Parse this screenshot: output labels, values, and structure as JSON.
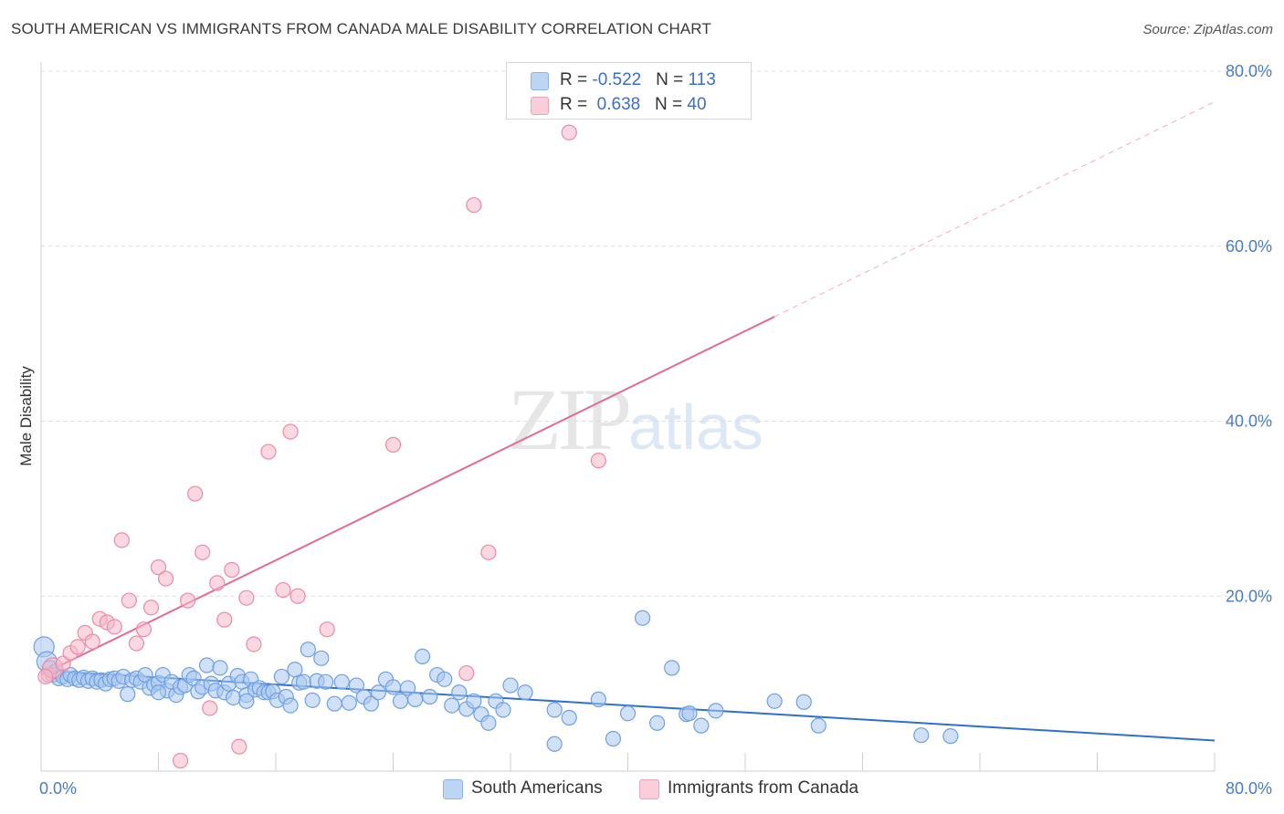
{
  "title": "SOUTH AMERICAN VS IMMIGRANTS FROM CANADA MALE DISABILITY CORRELATION CHART",
  "source": "Source: ZipAtlas.com",
  "watermark": {
    "zip": "ZIP",
    "atlas": "atlas"
  },
  "legend": {
    "series1": {
      "r_label": "R = ",
      "r_value": "-0.522",
      "n_label": "N = ",
      "n_value": "113",
      "color": "#a9c8f0"
    },
    "series2": {
      "r_label": "R = ",
      "r_value": "0.638",
      "n_label": "N = ",
      "n_value": "40",
      "color": "#f6b8c9"
    }
  },
  "bottom_legend": [
    {
      "label": "South Americans",
      "color": "#a9c8f0"
    },
    {
      "label": "Immigrants from Canada",
      "color": "#f6b8c9"
    }
  ],
  "chart_data": {
    "type": "scatter",
    "title": "SOUTH AMERICAN VS IMMIGRANTS FROM CANADA MALE DISABILITY CORRELATION CHART",
    "xlabel": "",
    "ylabel": "Male Disability",
    "xlim": [
      0,
      80
    ],
    "ylim": [
      0,
      80
    ],
    "x_tick_labels": [
      "0.0%",
      "80.0%"
    ],
    "y_tick_labels": [
      "20.0%",
      "40.0%",
      "60.0%",
      "80.0%"
    ],
    "y_ticks": [
      20,
      40,
      60,
      80
    ],
    "grid": true,
    "legend_position": "top-center",
    "series": [
      {
        "name": "South Americans",
        "color": "#6fa0e3",
        "fill": "#a9c8f0",
        "trend": {
          "x0": 0,
          "y0": 11.5,
          "x1": 80,
          "y1": 3.5,
          "solid_until": 80
        },
        "points": [
          [
            0.2,
            14.2
          ],
          [
            0.4,
            12.5
          ],
          [
            0.6,
            11.8
          ],
          [
            0.8,
            11.0
          ],
          [
            1.0,
            11.4
          ],
          [
            1.2,
            10.6
          ],
          [
            1.5,
            10.8
          ],
          [
            1.8,
            10.5
          ],
          [
            2.0,
            11.0
          ],
          [
            2.3,
            10.6
          ],
          [
            2.6,
            10.4
          ],
          [
            2.9,
            10.7
          ],
          [
            3.2,
            10.3
          ],
          [
            3.5,
            10.6
          ],
          [
            3.8,
            10.2
          ],
          [
            4.1,
            10.4
          ],
          [
            4.4,
            10.0
          ],
          [
            4.7,
            10.5
          ],
          [
            5.0,
            10.6
          ],
          [
            5.3,
            10.3
          ],
          [
            5.6,
            10.8
          ],
          [
            5.9,
            8.8
          ],
          [
            6.2,
            10.4
          ],
          [
            6.5,
            10.6
          ],
          [
            6.8,
            10.2
          ],
          [
            7.1,
            11.0
          ],
          [
            7.4,
            9.5
          ],
          [
            7.7,
            9.9
          ],
          [
            8.0,
            10.1
          ],
          [
            8.3,
            11.0
          ],
          [
            8.6,
            9.2
          ],
          [
            8.9,
            10.2
          ],
          [
            9.2,
            8.7
          ],
          [
            9.5,
            9.6
          ],
          [
            9.8,
            9.8
          ],
          [
            10.1,
            11.0
          ],
          [
            10.4,
            10.6
          ],
          [
            10.7,
            9.1
          ],
          [
            11.0,
            9.6
          ],
          [
            11.3,
            12.1
          ],
          [
            11.6,
            10.0
          ],
          [
            11.9,
            9.2
          ],
          [
            12.2,
            11.8
          ],
          [
            12.5,
            9.0
          ],
          [
            12.8,
            10.0
          ],
          [
            13.1,
            8.4
          ],
          [
            13.4,
            10.9
          ],
          [
            13.7,
            10.2
          ],
          [
            14.0,
            8.7
          ],
          [
            14.3,
            10.5
          ],
          [
            14.6,
            9.3
          ],
          [
            14.9,
            9.5
          ],
          [
            15.2,
            9.0
          ],
          [
            15.5,
            9.0
          ],
          [
            15.8,
            9.1
          ],
          [
            16.1,
            8.1
          ],
          [
            16.4,
            10.8
          ],
          [
            16.7,
            8.5
          ],
          [
            17.0,
            7.5
          ],
          [
            17.3,
            11.6
          ],
          [
            17.6,
            10.1
          ],
          [
            17.9,
            10.2
          ],
          [
            18.2,
            13.9
          ],
          [
            18.5,
            8.1
          ],
          [
            18.8,
            10.3
          ],
          [
            19.1,
            12.9
          ],
          [
            19.4,
            10.2
          ],
          [
            20.0,
            7.7
          ],
          [
            20.5,
            10.2
          ],
          [
            21.0,
            7.8
          ],
          [
            21.5,
            9.8
          ],
          [
            22.0,
            8.5
          ],
          [
            22.5,
            7.7
          ],
          [
            23.0,
            9.0
          ],
          [
            23.5,
            10.5
          ],
          [
            24.0,
            9.6
          ],
          [
            24.5,
            8.0
          ],
          [
            25.0,
            9.5
          ],
          [
            25.5,
            8.2
          ],
          [
            26.0,
            13.1
          ],
          [
            26.5,
            8.5
          ],
          [
            27.0,
            11.0
          ],
          [
            27.5,
            10.5
          ],
          [
            28.0,
            7.5
          ],
          [
            28.5,
            9.0
          ],
          [
            29.0,
            7.1
          ],
          [
            29.5,
            8.0
          ],
          [
            30.0,
            6.5
          ],
          [
            30.5,
            5.5
          ],
          [
            31.0,
            8.0
          ],
          [
            31.5,
            7.0
          ],
          [
            32.0,
            9.8
          ],
          [
            33.0,
            9.0
          ],
          [
            35.0,
            7.0
          ],
          [
            36.0,
            6.1
          ],
          [
            38.0,
            8.2
          ],
          [
            39.0,
            3.7
          ],
          [
            40.0,
            6.6
          ],
          [
            41.0,
            17.5
          ],
          [
            42.0,
            5.5
          ],
          [
            43.0,
            11.8
          ],
          [
            44.0,
            6.5
          ],
          [
            44.2,
            6.6
          ],
          [
            45.0,
            5.2
          ],
          [
            46.0,
            6.9
          ],
          [
            50.0,
            8.0
          ],
          [
            52.0,
            7.9
          ],
          [
            53.0,
            5.2
          ],
          [
            60.0,
            4.1
          ],
          [
            62.0,
            4.0
          ],
          [
            8.0,
            9.0
          ],
          [
            14.0,
            8.0
          ],
          [
            35.0,
            3.1
          ]
        ]
      },
      {
        "name": "Immigrants from Canada",
        "color": "#ee8aa8",
        "fill": "#f6b8c9",
        "trend": {
          "x0": 0,
          "y0": 11.0,
          "x1": 80,
          "y1": 76.5,
          "solid_until": 50
        },
        "points": [
          [
            0.5,
            11.0
          ],
          [
            0.8,
            11.8
          ],
          [
            1.5,
            12.3
          ],
          [
            2.0,
            13.5
          ],
          [
            2.5,
            14.2
          ],
          [
            3.0,
            15.8
          ],
          [
            3.5,
            14.8
          ],
          [
            4.0,
            17.4
          ],
          [
            4.5,
            17.0
          ],
          [
            5.0,
            16.5
          ],
          [
            5.5,
            26.4
          ],
          [
            6.0,
            19.5
          ],
          [
            6.5,
            14.6
          ],
          [
            7.0,
            16.2
          ],
          [
            7.5,
            18.7
          ],
          [
            8.0,
            23.3
          ],
          [
            8.5,
            22.0
          ],
          [
            9.5,
            1.2
          ],
          [
            10.0,
            19.5
          ],
          [
            10.5,
            31.7
          ],
          [
            11.0,
            25.0
          ],
          [
            11.5,
            7.2
          ],
          [
            12.0,
            21.5
          ],
          [
            12.5,
            17.3
          ],
          [
            13.0,
            23.0
          ],
          [
            13.5,
            2.8
          ],
          [
            14.0,
            19.8
          ],
          [
            14.5,
            14.5
          ],
          [
            15.5,
            36.5
          ],
          [
            16.5,
            20.7
          ],
          [
            17.0,
            38.8
          ],
          [
            17.5,
            20.0
          ],
          [
            19.5,
            16.2
          ],
          [
            24.0,
            37.3
          ],
          [
            29.0,
            11.2
          ],
          [
            29.5,
            64.7
          ],
          [
            30.5,
            25.0
          ],
          [
            36.0,
            73.0
          ],
          [
            38.0,
            35.5
          ],
          [
            0.3,
            10.8
          ]
        ]
      }
    ]
  }
}
